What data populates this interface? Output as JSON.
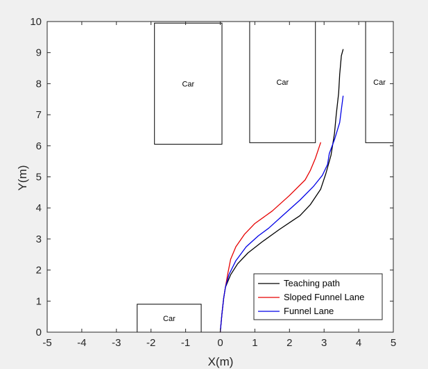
{
  "chart_data": {
    "type": "line",
    "title": "",
    "xlabel": "X(m)",
    "ylabel": "Y(m)",
    "xlim": [
      -5,
      5
    ],
    "ylim": [
      0,
      10
    ],
    "xticks": [
      -5,
      -4,
      -3,
      -2,
      -1,
      0,
      1,
      2,
      3,
      4,
      5
    ],
    "yticks": [
      0,
      1,
      2,
      3,
      4,
      5,
      6,
      7,
      8,
      9,
      10
    ],
    "grid": false,
    "legend_position": "bottom-right",
    "obstacles": [
      {
        "label": "Car",
        "x_range": [
          -1.9,
          0.05
        ],
        "y_range": [
          6.05,
          9.95
        ]
      },
      {
        "label": "Car",
        "x_range": [
          0.85,
          2.75
        ],
        "y_range": [
          6.1,
          10.0
        ]
      },
      {
        "label": "Car",
        "x_range": [
          4.2,
          5.0
        ],
        "y_range": [
          6.1,
          10.0
        ]
      },
      {
        "label": "Car",
        "x_range": [
          -2.4,
          -0.55
        ],
        "y_range": [
          0.0,
          0.9
        ]
      }
    ],
    "series": [
      {
        "name": "Teaching path",
        "color": "#000000",
        "points": [
          [
            0.0,
            0.0
          ],
          [
            0.05,
            0.6
          ],
          [
            0.1,
            1.1
          ],
          [
            0.15,
            1.45
          ],
          [
            0.3,
            1.85
          ],
          [
            0.5,
            2.2
          ],
          [
            0.8,
            2.55
          ],
          [
            1.2,
            2.9
          ],
          [
            1.7,
            3.3
          ],
          [
            2.1,
            3.6
          ],
          [
            2.3,
            3.75
          ],
          [
            2.6,
            4.1
          ],
          [
            2.9,
            4.6
          ],
          [
            3.05,
            5.1
          ],
          [
            3.2,
            5.7
          ],
          [
            3.3,
            6.4
          ],
          [
            3.35,
            7.0
          ],
          [
            3.42,
            7.7
          ],
          [
            3.45,
            8.3
          ],
          [
            3.5,
            8.9
          ],
          [
            3.55,
            9.1
          ]
        ]
      },
      {
        "name": "Sloped Funnel Lane",
        "color": "#e60000",
        "points": [
          [
            0.0,
            0.0
          ],
          [
            0.05,
            0.6
          ],
          [
            0.1,
            1.1
          ],
          [
            0.15,
            1.45
          ],
          [
            0.22,
            1.9
          ],
          [
            0.3,
            2.35
          ],
          [
            0.45,
            2.75
          ],
          [
            0.7,
            3.15
          ],
          [
            1.0,
            3.5
          ],
          [
            1.5,
            3.9
          ],
          [
            2.0,
            4.4
          ],
          [
            2.45,
            4.9
          ],
          [
            2.6,
            5.2
          ],
          [
            2.75,
            5.6
          ],
          [
            2.9,
            6.1
          ]
        ]
      },
      {
        "name": "Funnel Lane",
        "color": "#0000e6",
        "points": [
          [
            0.0,
            0.0
          ],
          [
            0.05,
            0.6
          ],
          [
            0.1,
            1.1
          ],
          [
            0.15,
            1.45
          ],
          [
            0.25,
            1.85
          ],
          [
            0.45,
            2.3
          ],
          [
            0.75,
            2.75
          ],
          [
            1.1,
            3.1
          ],
          [
            1.4,
            3.35
          ],
          [
            1.8,
            3.75
          ],
          [
            2.3,
            4.25
          ],
          [
            2.7,
            4.7
          ],
          [
            2.95,
            5.05
          ],
          [
            3.1,
            5.4
          ],
          [
            3.15,
            5.75
          ],
          [
            3.3,
            6.2
          ],
          [
            3.45,
            6.75
          ],
          [
            3.55,
            7.6
          ]
        ]
      }
    ]
  }
}
